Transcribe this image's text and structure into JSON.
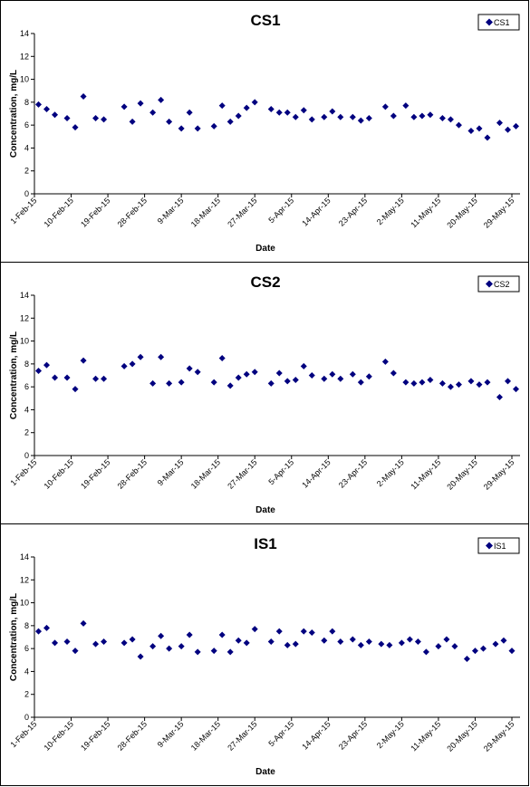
{
  "chart_data": [
    {
      "type": "scatter",
      "title": "CS1",
      "xlabel": "Date",
      "ylabel": "Concentration, mg/L",
      "ylim": [
        0,
        14
      ],
      "yticks": [
        "0",
        "2",
        "4",
        "6",
        "8",
        "10",
        "12",
        "14"
      ],
      "xlim": [
        "1-Feb-15",
        "31-May-15"
      ],
      "xticks": [
        "1-Feb-15",
        "10-Feb-15",
        "19-Feb-15",
        "28-Feb-15",
        "9-Mar-15",
        "18-Mar-15",
        "27-Mar-15",
        "5-Apr-15",
        "14-Apr-15",
        "23-Apr-15",
        "2-May-15",
        "11-May-15",
        "20-May-15",
        "29-May-15"
      ],
      "grid": false,
      "legend_position": "top-right",
      "marker_color": "#00007F",
      "series": [
        {
          "name": "CS1",
          "points": [
            [
              "2015-02-02",
              7.8
            ],
            [
              "2015-02-04",
              7.4
            ],
            [
              "2015-02-06",
              6.9
            ],
            [
              "2015-02-09",
              6.6
            ],
            [
              "2015-02-11",
              5.8
            ],
            [
              "2015-02-13",
              8.5
            ],
            [
              "2015-02-16",
              6.6
            ],
            [
              "2015-02-18",
              6.5
            ],
            [
              "2015-02-23",
              7.6
            ],
            [
              "2015-02-25",
              6.3
            ],
            [
              "2015-02-27",
              7.9
            ],
            [
              "2015-03-02",
              7.1
            ],
            [
              "2015-03-04",
              8.2
            ],
            [
              "2015-03-06",
              6.3
            ],
            [
              "2015-03-09",
              5.7
            ],
            [
              "2015-03-11",
              7.1
            ],
            [
              "2015-03-13",
              5.7
            ],
            [
              "2015-03-17",
              5.9
            ],
            [
              "2015-03-19",
              7.7
            ],
            [
              "2015-03-21",
              6.3
            ],
            [
              "2015-03-23",
              6.8
            ],
            [
              "2015-03-25",
              7.5
            ],
            [
              "2015-03-27",
              8.0
            ],
            [
              "2015-03-31",
              7.4
            ],
            [
              "2015-04-02",
              7.1
            ],
            [
              "2015-04-04",
              7.1
            ],
            [
              "2015-04-06",
              6.7
            ],
            [
              "2015-04-08",
              7.3
            ],
            [
              "2015-04-10",
              6.5
            ],
            [
              "2015-04-13",
              6.7
            ],
            [
              "2015-04-15",
              7.2
            ],
            [
              "2015-04-17",
              6.7
            ],
            [
              "2015-04-20",
              6.7
            ],
            [
              "2015-04-22",
              6.4
            ],
            [
              "2015-04-24",
              6.6
            ],
            [
              "2015-04-28",
              7.6
            ],
            [
              "2015-04-30",
              6.8
            ],
            [
              "2015-05-03",
              7.7
            ],
            [
              "2015-05-05",
              6.7
            ],
            [
              "2015-05-07",
              6.8
            ],
            [
              "2015-05-09",
              6.9
            ],
            [
              "2015-05-12",
              6.6
            ],
            [
              "2015-05-14",
              6.5
            ],
            [
              "2015-05-16",
              6.0
            ],
            [
              "2015-05-19",
              5.5
            ],
            [
              "2015-05-21",
              5.7
            ],
            [
              "2015-05-23",
              4.9
            ],
            [
              "2015-05-26",
              6.2
            ],
            [
              "2015-05-28",
              5.6
            ],
            [
              "2015-05-30",
              5.9
            ]
          ]
        }
      ]
    },
    {
      "type": "scatter",
      "title": "CS2",
      "xlabel": "Date",
      "ylabel": "Concentration, mg/L",
      "ylim": [
        0,
        14
      ],
      "yticks": [
        "0",
        "2",
        "4",
        "6",
        "8",
        "10",
        "12",
        "14"
      ],
      "xlim": [
        "1-Feb-15",
        "31-May-15"
      ],
      "xticks": [
        "1-Feb-15",
        "10-Feb-15",
        "19-Feb-15",
        "28-Feb-15",
        "9-Mar-15",
        "18-Mar-15",
        "27-Mar-15",
        "5-Apr-15",
        "14-Apr-15",
        "23-Apr-15",
        "2-May-15",
        "11-May-15",
        "20-May-15",
        "29-May-15"
      ],
      "grid": false,
      "legend_position": "top-right",
      "marker_color": "#00007F",
      "series": [
        {
          "name": "CS2",
          "points": [
            [
              "2015-02-02",
              7.4
            ],
            [
              "2015-02-04",
              7.9
            ],
            [
              "2015-02-06",
              6.8
            ],
            [
              "2015-02-09",
              6.8
            ],
            [
              "2015-02-11",
              5.8
            ],
            [
              "2015-02-13",
              8.3
            ],
            [
              "2015-02-16",
              6.7
            ],
            [
              "2015-02-18",
              6.7
            ],
            [
              "2015-02-23",
              7.8
            ],
            [
              "2015-02-25",
              8.0
            ],
            [
              "2015-02-27",
              8.6
            ],
            [
              "2015-03-02",
              6.3
            ],
            [
              "2015-03-04",
              8.6
            ],
            [
              "2015-03-06",
              6.3
            ],
            [
              "2015-03-09",
              6.4
            ],
            [
              "2015-03-11",
              7.6
            ],
            [
              "2015-03-13",
              7.3
            ],
            [
              "2015-03-17",
              6.4
            ],
            [
              "2015-03-19",
              8.5
            ],
            [
              "2015-03-21",
              6.1
            ],
            [
              "2015-03-23",
              6.8
            ],
            [
              "2015-03-25",
              7.1
            ],
            [
              "2015-03-27",
              7.3
            ],
            [
              "2015-03-31",
              6.3
            ],
            [
              "2015-04-02",
              7.2
            ],
            [
              "2015-04-04",
              6.5
            ],
            [
              "2015-04-06",
              6.6
            ],
            [
              "2015-04-08",
              7.8
            ],
            [
              "2015-04-10",
              7.0
            ],
            [
              "2015-04-13",
              6.7
            ],
            [
              "2015-04-15",
              7.1
            ],
            [
              "2015-04-17",
              6.7
            ],
            [
              "2015-04-20",
              7.1
            ],
            [
              "2015-04-22",
              6.4
            ],
            [
              "2015-04-24",
              6.9
            ],
            [
              "2015-04-28",
              8.2
            ],
            [
              "2015-04-30",
              7.2
            ],
            [
              "2015-05-03",
              6.4
            ],
            [
              "2015-05-05",
              6.3
            ],
            [
              "2015-05-07",
              6.4
            ],
            [
              "2015-05-09",
              6.6
            ],
            [
              "2015-05-12",
              6.3
            ],
            [
              "2015-05-14",
              6.0
            ],
            [
              "2015-05-16",
              6.2
            ],
            [
              "2015-05-19",
              6.5
            ],
            [
              "2015-05-21",
              6.2
            ],
            [
              "2015-05-23",
              6.4
            ],
            [
              "2015-05-26",
              5.1
            ],
            [
              "2015-05-28",
              6.5
            ],
            [
              "2015-05-30",
              5.8
            ]
          ]
        }
      ]
    },
    {
      "type": "scatter",
      "title": "IS1",
      "xlabel": "Date",
      "ylabel": "Concentration, mg/L",
      "ylim": [
        0,
        14
      ],
      "yticks": [
        "0",
        "2",
        "4",
        "6",
        "8",
        "10",
        "12",
        "14"
      ],
      "xlim": [
        "1-Feb-15",
        "31-May-15"
      ],
      "xticks": [
        "1-Feb-15",
        "10-Feb-15",
        "19-Feb-15",
        "28-Feb-15",
        "9-Mar-15",
        "18-Mar-15",
        "27-Mar-15",
        "5-Apr-15",
        "14-Apr-15",
        "23-Apr-15",
        "2-May-15",
        "11-May-15",
        "20-May-15",
        "29-May-15"
      ],
      "grid": false,
      "legend_position": "top-right",
      "marker_color": "#00007F",
      "series": [
        {
          "name": "IS1",
          "points": [
            [
              "2015-02-02",
              7.5
            ],
            [
              "2015-02-04",
              7.8
            ],
            [
              "2015-02-06",
              6.5
            ],
            [
              "2015-02-09",
              6.6
            ],
            [
              "2015-02-11",
              5.8
            ],
            [
              "2015-02-13",
              8.2
            ],
            [
              "2015-02-16",
              6.4
            ],
            [
              "2015-02-18",
              6.6
            ],
            [
              "2015-02-23",
              6.5
            ],
            [
              "2015-02-25",
              6.8
            ],
            [
              "2015-02-27",
              5.3
            ],
            [
              "2015-03-02",
              6.2
            ],
            [
              "2015-03-04",
              7.1
            ],
            [
              "2015-03-06",
              6.0
            ],
            [
              "2015-03-09",
              6.2
            ],
            [
              "2015-03-11",
              7.2
            ],
            [
              "2015-03-13",
              5.7
            ],
            [
              "2015-03-17",
              5.8
            ],
            [
              "2015-03-19",
              7.2
            ],
            [
              "2015-03-21",
              5.7
            ],
            [
              "2015-03-23",
              6.7
            ],
            [
              "2015-03-25",
              6.5
            ],
            [
              "2015-03-27",
              7.7
            ],
            [
              "2015-03-31",
              6.6
            ],
            [
              "2015-04-02",
              7.5
            ],
            [
              "2015-04-04",
              6.3
            ],
            [
              "2015-04-06",
              6.4
            ],
            [
              "2015-04-08",
              7.5
            ],
            [
              "2015-04-10",
              7.4
            ],
            [
              "2015-04-13",
              6.7
            ],
            [
              "2015-04-15",
              7.5
            ],
            [
              "2015-04-17",
              6.6
            ],
            [
              "2015-04-20",
              6.8
            ],
            [
              "2015-04-22",
              6.3
            ],
            [
              "2015-04-24",
              6.6
            ],
            [
              "2015-04-27",
              6.4
            ],
            [
              "2015-04-29",
              6.3
            ],
            [
              "2015-05-02",
              6.5
            ],
            [
              "2015-05-04",
              6.8
            ],
            [
              "2015-05-06",
              6.6
            ],
            [
              "2015-05-08",
              5.7
            ],
            [
              "2015-05-11",
              6.2
            ],
            [
              "2015-05-13",
              6.8
            ],
            [
              "2015-05-15",
              6.2
            ],
            [
              "2015-05-18",
              5.1
            ],
            [
              "2015-05-20",
              5.8
            ],
            [
              "2015-05-22",
              6.0
            ],
            [
              "2015-05-25",
              6.4
            ],
            [
              "2015-05-27",
              6.7
            ],
            [
              "2015-05-29",
              5.8
            ]
          ]
        }
      ]
    }
  ]
}
